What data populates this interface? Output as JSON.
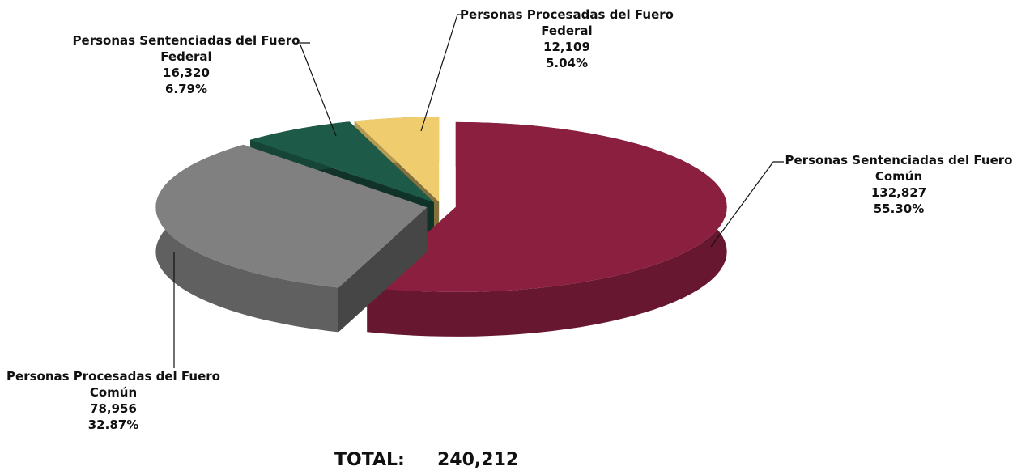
{
  "chart_data": {
    "type": "pie",
    "categories": [
      "Personas Sentenciadas del Fuero Común",
      "Personas Procesadas del Fuero Común",
      "Personas Sentenciadas del Fuero Federal",
      "Personas Procesadas del Fuero Federal"
    ],
    "values": [
      132827,
      78956,
      16320,
      12109
    ],
    "value_labels": [
      "132,827",
      "78,956",
      "16,320",
      "12,109"
    ],
    "percentages": [
      55.3,
      32.87,
      6.79,
      5.04
    ],
    "percentage_labels": [
      "55.30%",
      "32.87%",
      "6.79%",
      "5.04%"
    ],
    "colors": [
      "#8b1f40",
      "#808080",
      "#1d5a48",
      "#efcd6e"
    ],
    "total": {
      "label": "TOTAL:",
      "value": 240212,
      "value_label": "240,212"
    }
  }
}
